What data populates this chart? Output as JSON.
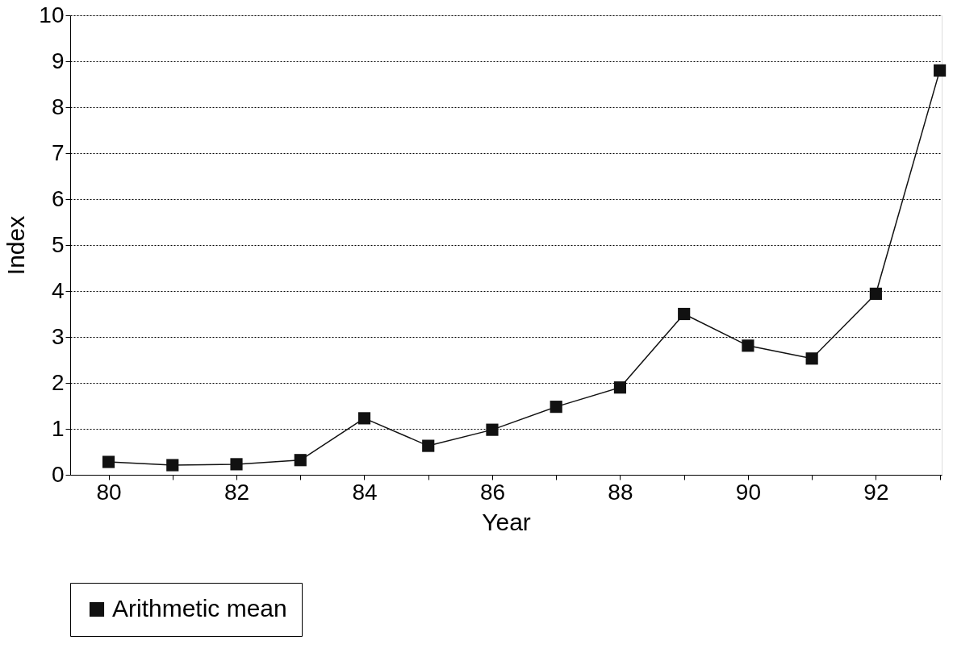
{
  "chart_data": {
    "type": "line",
    "xlabel": "Year",
    "ylabel": "Index",
    "x": [
      80,
      81,
      82,
      83,
      84,
      85,
      86,
      87,
      88,
      89,
      90,
      91,
      92,
      93
    ],
    "series": [
      {
        "name": "Arithmetic mean",
        "color": "#111111",
        "values": [
          0.28,
          0.21,
          0.23,
          0.32,
          1.23,
          0.63,
          0.98,
          1.48,
          1.9,
          3.5,
          2.81,
          2.53,
          3.94,
          8.8
        ]
      }
    ],
    "xlim": [
      79.4,
      93.03
    ],
    "xticks": [
      80,
      {
        "value": 81,
        "label": null
      },
      82,
      {
        "value": 83,
        "label": null
      },
      84,
      {
        "value": 85,
        "label": null
      },
      86,
      {
        "value": 87,
        "label": null
      },
      88,
      {
        "value": 89,
        "label": null
      },
      90,
      {
        "value": 91,
        "label": null
      },
      92,
      {
        "value": 93,
        "label": null
      }
    ],
    "ylim": [
      0,
      10
    ],
    "yticks": [
      0,
      1,
      2,
      3,
      4,
      5,
      6,
      7,
      8,
      9,
      10
    ],
    "grid": "y",
    "legend": "bottom",
    "marker": "square",
    "line_style": "solid"
  }
}
